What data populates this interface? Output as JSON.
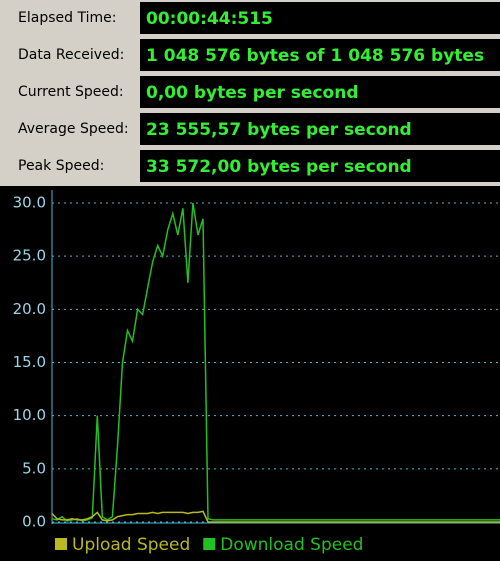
{
  "stats": [
    {
      "label": "Elapsed Time:",
      "value": "00:00:44:515"
    },
    {
      "label": "Data Received:",
      "value": "1 048 576 bytes of 1 048 576 bytes"
    },
    {
      "label": "Current Speed:",
      "value": "0,00 bytes per second"
    },
    {
      "label": "Average Speed:",
      "value": "23 555,57 bytes per second"
    },
    {
      "label": "Peak Speed:",
      "value": "33 572,00 bytes per second"
    }
  ],
  "chart_data": {
    "type": "line",
    "ylim": [
      0,
      30
    ],
    "yticks": [
      {
        "value": 0,
        "label": "0.0"
      },
      {
        "value": 5,
        "label": "5.0"
      },
      {
        "value": 10,
        "label": "10.0"
      },
      {
        "value": 15,
        "label": "15.0"
      },
      {
        "value": 20,
        "label": "20.0"
      },
      {
        "value": 25,
        "label": "25.0"
      },
      {
        "value": 30,
        "label": "30.0"
      }
    ],
    "grid": true,
    "series": [
      {
        "name": "Upload Speed",
        "color": "#b8b820",
        "values": [
          0.8,
          0.3,
          0.2,
          0.2,
          0.3,
          0.2,
          0.2,
          0.3,
          0.5,
          0.9,
          0.2,
          0.1,
          0.2,
          0.5,
          0.6,
          0.7,
          0.7,
          0.8,
          0.8,
          0.8,
          0.9,
          0.8,
          0.9,
          0.9,
          0.9,
          0.9,
          0.9,
          0.8,
          0.9,
          0.9,
          1.0,
          0,
          0,
          0,
          0,
          0,
          0,
          0,
          0,
          0,
          0,
          0,
          0,
          0,
          0,
          0,
          0,
          0,
          0,
          0,
          0,
          0,
          0,
          0,
          0,
          0,
          0,
          0,
          0,
          0,
          0,
          0,
          0,
          0,
          0,
          0,
          0,
          0,
          0,
          0,
          0,
          0,
          0,
          0,
          0,
          0,
          0,
          0,
          0,
          0,
          0,
          0,
          0,
          0,
          0,
          0,
          0,
          0,
          0,
          0
        ]
      },
      {
        "name": "Download Speed",
        "color": "#22c022",
        "values": [
          0.3,
          0.2,
          0.5,
          0.1,
          0.2,
          0.3,
          0.1,
          0.2,
          0.4,
          10.0,
          0.5,
          0.2,
          0.5,
          7.0,
          15.0,
          18.0,
          17.0,
          20.0,
          19.5,
          22.0,
          24.5,
          26.0,
          25.0,
          27.5,
          29.0,
          27.0,
          29.5,
          22.5,
          30.0,
          27.0,
          28.5,
          0.3,
          0.2,
          0.2,
          0.2,
          0.2,
          0.2,
          0.2,
          0.2,
          0.2,
          0.2,
          0.2,
          0.2,
          0.2,
          0.2,
          0.2,
          0.2,
          0.2,
          0.2,
          0.2,
          0.2,
          0.2,
          0.2,
          0.2,
          0.2,
          0.2,
          0.2,
          0.2,
          0.2,
          0.2,
          0.2,
          0.2,
          0.2,
          0.2,
          0.2,
          0.2,
          0.2,
          0.2,
          0.2,
          0.2,
          0.2,
          0.2,
          0.2,
          0.2,
          0.2,
          0.2,
          0.2,
          0.2,
          0.2,
          0.2,
          0.2,
          0.2,
          0.2,
          0.2,
          0.2,
          0.2,
          0.2,
          0.2,
          0.2,
          0.2
        ]
      }
    ]
  }
}
